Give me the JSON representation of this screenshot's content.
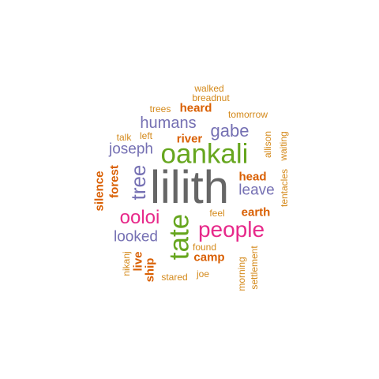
{
  "colors": {
    "gray": "#666666",
    "green": "#66a61e",
    "pink": "#e7298a",
    "purple": "#7570b3",
    "orange": "#d95f02",
    "tan": "#e6ab02",
    "ochre": "#d4891a"
  },
  "words": [
    {
      "text": "lilith",
      "color": "gray"
    },
    {
      "text": "oankali",
      "color": "green"
    },
    {
      "text": "tate",
      "color": "green"
    },
    {
      "text": "people",
      "color": "pink"
    },
    {
      "text": "ooloi",
      "color": "pink"
    },
    {
      "text": "tree",
      "color": "purple"
    },
    {
      "text": "humans",
      "color": "purple"
    },
    {
      "text": "gabe",
      "color": "purple"
    },
    {
      "text": "joseph",
      "color": "purple"
    },
    {
      "text": "leave",
      "color": "purple"
    },
    {
      "text": "looked",
      "color": "purple"
    },
    {
      "text": "heard",
      "color": "orange"
    },
    {
      "text": "river",
      "color": "orange"
    },
    {
      "text": "head",
      "color": "orange"
    },
    {
      "text": "earth",
      "color": "orange"
    },
    {
      "text": "camp",
      "color": "orange"
    },
    {
      "text": "forest",
      "color": "orange"
    },
    {
      "text": "silence",
      "color": "orange"
    },
    {
      "text": "live",
      "color": "orange"
    },
    {
      "text": "ship",
      "color": "orange"
    },
    {
      "text": "walked",
      "color": "ochre"
    },
    {
      "text": "breadnut",
      "color": "ochre"
    },
    {
      "text": "trees",
      "color": "ochre"
    },
    {
      "text": "tomorrow",
      "color": "ochre"
    },
    {
      "text": "talk",
      "color": "ochre"
    },
    {
      "text": "left",
      "color": "ochre"
    },
    {
      "text": "allison",
      "color": "ochre"
    },
    {
      "text": "waiting",
      "color": "ochre"
    },
    {
      "text": "tentacles",
      "color": "ochre"
    },
    {
      "text": "feel",
      "color": "ochre"
    },
    {
      "text": "found",
      "color": "ochre"
    },
    {
      "text": "joe",
      "color": "ochre"
    },
    {
      "text": "stared",
      "color": "ochre"
    },
    {
      "text": "nikanj",
      "color": "ochre"
    },
    {
      "text": "morning",
      "color": "ochre"
    },
    {
      "text": "settlement",
      "color": "ochre"
    }
  ]
}
